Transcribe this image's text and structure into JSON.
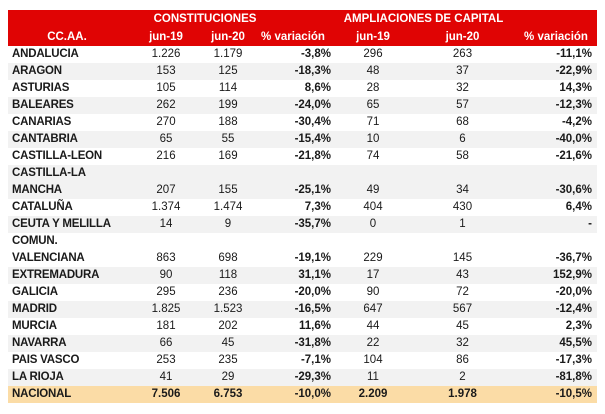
{
  "table": {
    "group_headers": [
      "CONSTITUCIONES",
      "AMPLIACIONES DE CAPITAL"
    ],
    "col_headers": [
      "CC.AA.",
      "jun-19",
      "jun-20",
      "% variación",
      "jun-19",
      "jun-20",
      "% variación"
    ],
    "rows": [
      {
        "name": "ANDALUCIA",
        "values": [
          "1.226",
          "1.179",
          "-3,8%",
          "296",
          "263",
          "-11,1%"
        ]
      },
      {
        "name": "ARAGON",
        "values": [
          "153",
          "125",
          "-18,3%",
          "48",
          "37",
          "-22,9%"
        ]
      },
      {
        "name": "ASTURIAS",
        "values": [
          "105",
          "114",
          "8,6%",
          "28",
          "32",
          "14,3%"
        ]
      },
      {
        "name": "BALEARES",
        "values": [
          "262",
          "199",
          "-24,0%",
          "65",
          "57",
          "-12,3%"
        ]
      },
      {
        "name": "CANARIAS",
        "values": [
          "270",
          "188",
          "-30,4%",
          "71",
          "68",
          "-4,2%"
        ]
      },
      {
        "name": "CANTABRIA",
        "values": [
          "65",
          "55",
          "-15,4%",
          "10",
          "6",
          "-40,0%"
        ]
      },
      {
        "name": "CASTILLA-LEON",
        "values": [
          "216",
          "169",
          "-21,8%",
          "74",
          "58",
          "-21,6%"
        ]
      },
      {
        "name": "CASTILLA-LA\nMANCHA",
        "wrap": true,
        "values": [
          "207",
          "155",
          "-25,1%",
          "49",
          "34",
          "-30,6%"
        ]
      },
      {
        "name": "CATALUÑA",
        "values": [
          "1.374",
          "1.474",
          "7,3%",
          "404",
          "430",
          "6,4%"
        ]
      },
      {
        "name": "CEUTA Y MELILLA",
        "values": [
          "14",
          "9",
          "-35,7%",
          "0",
          "1",
          "-"
        ]
      },
      {
        "name": "COMUN.\nVALENCIANA",
        "wrap": true,
        "values": [
          "863",
          "698",
          "-19,1%",
          "229",
          "145",
          "-36,7%"
        ]
      },
      {
        "name": "EXTREMADURA",
        "values": [
          "90",
          "118",
          "31,1%",
          "17",
          "43",
          "152,9%"
        ]
      },
      {
        "name": "GALICIA",
        "values": [
          "295",
          "236",
          "-20,0%",
          "90",
          "72",
          "-20,0%"
        ]
      },
      {
        "name": "MADRID",
        "values": [
          "1.825",
          "1.523",
          "-16,5%",
          "647",
          "567",
          "-12,4%"
        ]
      },
      {
        "name": "MURCIA",
        "values": [
          "181",
          "202",
          "11,6%",
          "44",
          "45",
          "2,3%"
        ]
      },
      {
        "name": "NAVARRA",
        "values": [
          "66",
          "45",
          "-31,8%",
          "22",
          "32",
          "45,5%"
        ]
      },
      {
        "name": "PAIS VASCO",
        "values": [
          "253",
          "235",
          "-7,1%",
          "104",
          "86",
          "-17,3%"
        ]
      },
      {
        "name": "LA RIOJA",
        "values": [
          "41",
          "29",
          "-29,3%",
          "11",
          "2",
          "-81,8%"
        ]
      },
      {
        "name": "NACIONAL",
        "total": true,
        "values": [
          "7.506",
          "6.753",
          "-10,0%",
          "2.209",
          "1.978",
          "-10,5%"
        ]
      }
    ],
    "colors": {
      "header_bg": "#E00404",
      "header_text": "#FFFFFF",
      "stripe_bg": "#F2F2F2",
      "total_bg": "#FBDCA6",
      "text": "#1A1A1A",
      "page_bg": "#FFFFFF"
    }
  },
  "chart_data": {
    "type": "table",
    "column_groups": [
      "CONSTITUCIONES",
      "AMPLIACIONES DE CAPITAL"
    ],
    "columns": [
      "CC.AA.",
      "Constituciones jun-19",
      "Constituciones jun-20",
      "Constituciones % variación",
      "Ampliaciones jun-19",
      "Ampliaciones jun-20",
      "Ampliaciones % variación"
    ],
    "rows": [
      [
        "ANDALUCIA",
        1226,
        1179,
        -3.8,
        296,
        263,
        -11.1
      ],
      [
        "ARAGON",
        153,
        125,
        -18.3,
        48,
        37,
        -22.9
      ],
      [
        "ASTURIAS",
        105,
        114,
        8.6,
        28,
        32,
        14.3
      ],
      [
        "BALEARES",
        262,
        199,
        -24.0,
        65,
        57,
        -12.3
      ],
      [
        "CANARIAS",
        270,
        188,
        -30.4,
        71,
        68,
        -4.2
      ],
      [
        "CANTABRIA",
        65,
        55,
        -15.4,
        10,
        6,
        -40.0
      ],
      [
        "CASTILLA-LEON",
        216,
        169,
        -21.8,
        74,
        58,
        -21.6
      ],
      [
        "CASTILLA-LA MANCHA",
        207,
        155,
        -25.1,
        49,
        34,
        -30.6
      ],
      [
        "CATALUÑA",
        1374,
        1474,
        7.3,
        404,
        430,
        6.4
      ],
      [
        "CEUTA Y MELILLA",
        14,
        9,
        -35.7,
        0,
        1,
        null
      ],
      [
        "COMUN. VALENCIANA",
        863,
        698,
        -19.1,
        229,
        145,
        -36.7
      ],
      [
        "EXTREMADURA",
        90,
        118,
        31.1,
        17,
        43,
        152.9
      ],
      [
        "GALICIA",
        295,
        236,
        -20.0,
        90,
        72,
        -20.0
      ],
      [
        "MADRID",
        1825,
        1523,
        -16.5,
        647,
        567,
        -12.4
      ],
      [
        "MURCIA",
        181,
        202,
        11.6,
        44,
        45,
        2.3
      ],
      [
        "NAVARRA",
        66,
        45,
        -31.8,
        22,
        32,
        45.5
      ],
      [
        "PAIS VASCO",
        253,
        235,
        -7.1,
        104,
        86,
        -17.3
      ],
      [
        "LA RIOJA",
        41,
        29,
        -29.3,
        11,
        2,
        -81.8
      ],
      [
        "NACIONAL",
        7506,
        6753,
        -10.0,
        2209,
        1978,
        -10.5
      ]
    ]
  }
}
